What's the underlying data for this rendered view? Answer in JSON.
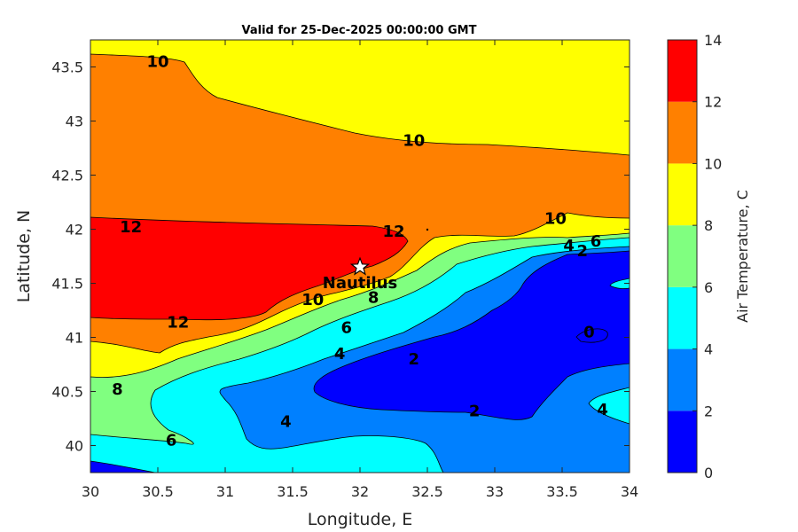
{
  "chart_data": {
    "type": "contourf",
    "title": "Valid for 25-Dec-2025 00:00:00 GMT",
    "xlabel": "Longitude, E",
    "ylabel": "Latitude, N",
    "xlim": [
      30,
      34
    ],
    "ylim": [
      39.75,
      43.75
    ],
    "xticks": [
      "30",
      "30.5",
      "31",
      "31.5",
      "32",
      "32.5",
      "33",
      "33.5",
      "34"
    ],
    "yticks": [
      "40",
      "40.5",
      "41",
      "41.5",
      "42",
      "42.5",
      "43",
      "43.5"
    ],
    "colorbar": {
      "label": "Air Temperature, C",
      "ticks": [
        "0",
        "2",
        "4",
        "6",
        "8",
        "10",
        "12",
        "14"
      ],
      "levels": [
        0,
        2,
        4,
        6,
        8,
        10,
        12,
        14
      ],
      "colors": [
        "#0000ff",
        "#0080ff",
        "#00ffff",
        "#80ff80",
        "#ffff00",
        "#ff8000",
        "#ff0000",
        "#800000"
      ]
    },
    "marker": {
      "label": "Nautilus",
      "lon": 32.0,
      "lat": 41.65
    },
    "contour_labels": [
      {
        "text": "10",
        "lon": 30.5,
        "lat": 43.55
      },
      {
        "text": "10",
        "lon": 32.4,
        "lat": 42.82
      },
      {
        "text": "10",
        "lon": 33.45,
        "lat": 42.1
      },
      {
        "text": "12",
        "lon": 30.3,
        "lat": 42.02
      },
      {
        "text": "12",
        "lon": 32.25,
        "lat": 41.98
      },
      {
        "text": "12",
        "lon": 30.65,
        "lat": 41.14
      },
      {
        "text": "10",
        "lon": 31.65,
        "lat": 41.35
      },
      {
        "text": "8",
        "lon": 32.1,
        "lat": 41.37
      },
      {
        "text": "6",
        "lon": 31.9,
        "lat": 41.09
      },
      {
        "text": "4",
        "lon": 31.85,
        "lat": 40.85
      },
      {
        "text": "2",
        "lon": 32.4,
        "lat": 40.8
      },
      {
        "text": "8",
        "lon": 30.2,
        "lat": 40.52
      },
      {
        "text": "6",
        "lon": 30.6,
        "lat": 40.05
      },
      {
        "text": "4",
        "lon": 31.45,
        "lat": 40.22
      },
      {
        "text": "2",
        "lon": 32.85,
        "lat": 40.32
      },
      {
        "text": "0",
        "lon": 33.7,
        "lat": 41.05
      },
      {
        "text": "4",
        "lon": 33.55,
        "lat": 41.85
      },
      {
        "text": "2",
        "lon": 33.65,
        "lat": 41.8
      },
      {
        "text": "6",
        "lon": 33.75,
        "lat": 41.89
      },
      {
        "text": "4",
        "lon": 33.8,
        "lat": 40.33
      }
    ]
  }
}
